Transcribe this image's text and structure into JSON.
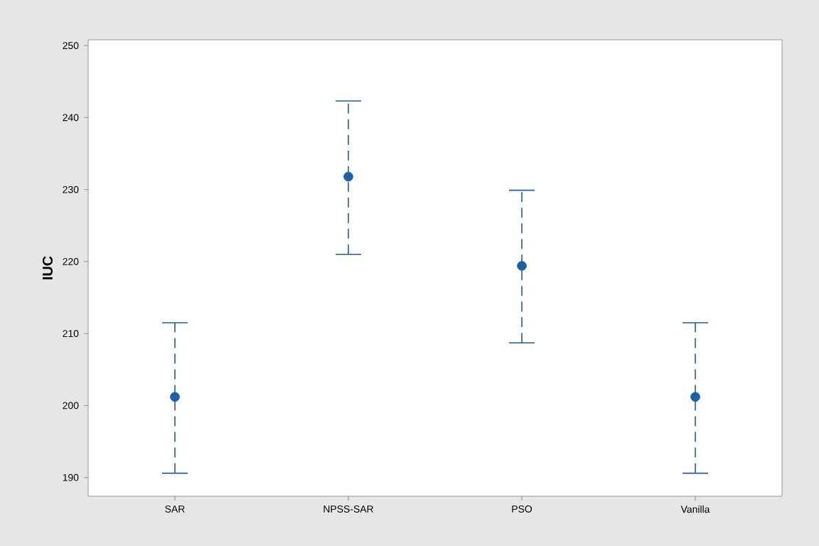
{
  "chart_data": {
    "type": "scatter",
    "ylabel": "IUC",
    "categories": [
      "SAR",
      "NPSS-SAR",
      "PSO",
      "Vanilla"
    ],
    "series": [
      {
        "color": "#1f5fa8",
        "values": [
          201.2,
          231.8,
          219.4,
          201.2
        ],
        "errors": [
          [
            190.6,
            211.5
          ],
          [
            221.0,
            242.3
          ],
          [
            208.7,
            229.9
          ],
          [
            190.6,
            211.5
          ]
        ]
      }
    ],
    "ylim": [
      187.4,
      250.8
    ],
    "yticks": [
      190,
      200,
      210,
      220,
      230,
      240,
      250
    ],
    "marker": "circle",
    "grid": false
  }
}
